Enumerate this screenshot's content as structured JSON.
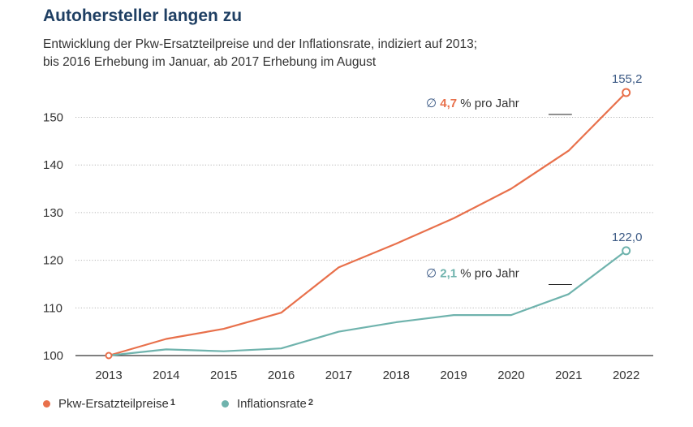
{
  "title": "Autohersteller langen zu",
  "subtitle_line1": "Entwicklung der Pkw-Ersatzteilpreise und der Inflationsrate, indiziert auf 2013;",
  "subtitle_line2": "bis 2016 Erhebung im Januar, ab 2017 Erhebung im August",
  "colors": {
    "parts": "#e8704b",
    "inflation": "#6fb3ad",
    "grid": "#b5b5b5",
    "axis": "#333333",
    "label_blue": "#3c5a85"
  },
  "chart_data": {
    "type": "line",
    "title": "Autohersteller langen zu",
    "x": [
      "2013",
      "2014",
      "2015",
      "2016",
      "2017",
      "2018",
      "2019",
      "2020",
      "2021",
      "2022"
    ],
    "ylim": [
      100,
      157
    ],
    "yticks": [
      "100",
      "110",
      "120",
      "130",
      "140",
      "150"
    ],
    "grid": true,
    "legend_position": "bottom-left",
    "series": [
      {
        "name": "Pkw-Ersatzteilpreise",
        "footnote": "1",
        "color": "#e8704b",
        "values": [
          100.0,
          103.5,
          105.6,
          109.0,
          118.5,
          123.5,
          128.8,
          135.0,
          143.0,
          155.2
        ]
      },
      {
        "name": "Inflationsrate",
        "footnote": "2",
        "color": "#6fb3ad",
        "values": [
          100.0,
          101.3,
          100.9,
          101.5,
          105.0,
          107.0,
          108.5,
          108.5,
          112.9,
          122.0
        ]
      }
    ],
    "end_labels": [
      "155,2",
      "122,0"
    ],
    "annotations": [
      {
        "symbol": "∅",
        "value": "4,7",
        "text": "% pro Jahr"
      },
      {
        "symbol": "∅",
        "value": "2,1",
        "text": "% pro Jahr"
      }
    ]
  }
}
